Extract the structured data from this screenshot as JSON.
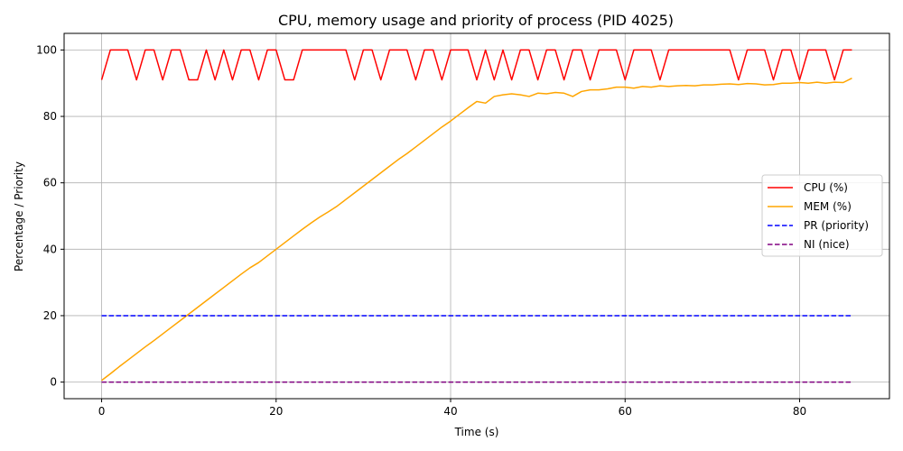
{
  "chart_data": {
    "type": "line",
    "title": "CPU, memory usage and priority of process (PID 4025)",
    "xlabel": "Time (s)",
    "ylabel": "Percentage / Priority",
    "xlim": [
      -4.3,
      90.3
    ],
    "ylim": [
      -5,
      105
    ],
    "xticks": [
      0,
      20,
      40,
      60,
      80
    ],
    "yticks": [
      0,
      20,
      40,
      60,
      80,
      100
    ],
    "grid": true,
    "legend_position": "center-right",
    "x": [
      0,
      1,
      2,
      3,
      4,
      5,
      6,
      7,
      8,
      9,
      10,
      11,
      12,
      13,
      14,
      15,
      16,
      17,
      18,
      19,
      20,
      21,
      22,
      23,
      24,
      25,
      26,
      27,
      28,
      29,
      30,
      31,
      32,
      33,
      34,
      35,
      36,
      37,
      38,
      39,
      40,
      41,
      42,
      43,
      44,
      45,
      46,
      47,
      48,
      49,
      50,
      51,
      52,
      53,
      54,
      55,
      56,
      57,
      58,
      59,
      60,
      61,
      62,
      63,
      64,
      65,
      66,
      67,
      68,
      69,
      70,
      71,
      72,
      73,
      74,
      75,
      76,
      77,
      78,
      79,
      80,
      81,
      82,
      83,
      84,
      85,
      86
    ],
    "series": [
      {
        "name": "CPU (%)",
        "color": "#ff0000",
        "dash": "solid",
        "values": [
          91,
          100,
          100,
          100,
          91,
          100,
          100,
          91,
          100,
          100,
          91,
          91,
          100,
          91,
          100,
          91,
          100,
          100,
          91,
          100,
          100,
          91,
          91,
          100,
          100,
          100,
          100,
          100,
          100,
          91,
          100,
          100,
          91,
          100,
          100,
          100,
          91,
          100,
          100,
          91,
          100,
          100,
          100,
          91,
          100,
          91,
          100,
          91,
          100,
          100,
          91,
          100,
          100,
          91,
          100,
          100,
          91,
          100,
          100,
          100,
          91,
          100,
          100,
          100,
          91,
          100,
          100,
          100,
          100,
          100,
          100,
          100,
          100,
          91,
          100,
          100,
          100,
          91,
          100,
          100,
          91,
          100,
          100,
          100,
          91,
          100,
          100
        ]
      },
      {
        "name": "MEM (%)",
        "color": "#ffa500",
        "dash": "solid",
        "values": [
          0.5,
          2.5,
          4.6,
          6.6,
          8.6,
          10.6,
          12.5,
          14.5,
          16.5,
          18.5,
          20.5,
          22.5,
          24.5,
          26.5,
          28.5,
          30.5,
          32.5,
          34.4,
          36.0,
          38.0,
          40.0,
          42.0,
          44.0,
          46.0,
          47.9,
          49.7,
          51.3,
          53.0,
          55.0,
          57.0,
          59.0,
          61.0,
          63.0,
          65.0,
          67.0,
          68.8,
          70.8,
          72.8,
          74.8,
          76.8,
          78.6,
          80.6,
          82.6,
          84.5,
          84.0,
          86.0,
          86.5,
          86.8,
          86.5,
          86.0,
          87.0,
          86.8,
          87.2,
          87.0,
          86.0,
          87.5,
          88.0,
          88.0,
          88.3,
          88.8,
          88.8,
          88.5,
          89.0,
          88.8,
          89.2,
          89.0,
          89.2,
          89.3,
          89.2,
          89.5,
          89.5,
          89.7,
          89.8,
          89.6,
          89.9,
          89.8,
          89.5,
          89.6,
          90.0,
          90.0,
          90.2,
          90.0,
          90.3,
          90.0,
          90.3,
          90.2,
          91.5
        ]
      },
      {
        "name": "PR (priority)",
        "color": "#0000ff",
        "dash": "dashed",
        "values": [
          20,
          20,
          20,
          20,
          20,
          20,
          20,
          20,
          20,
          20,
          20,
          20,
          20,
          20,
          20,
          20,
          20,
          20,
          20,
          20,
          20,
          20,
          20,
          20,
          20,
          20,
          20,
          20,
          20,
          20,
          20,
          20,
          20,
          20,
          20,
          20,
          20,
          20,
          20,
          20,
          20,
          20,
          20,
          20,
          20,
          20,
          20,
          20,
          20,
          20,
          20,
          20,
          20,
          20,
          20,
          20,
          20,
          20,
          20,
          20,
          20,
          20,
          20,
          20,
          20,
          20,
          20,
          20,
          20,
          20,
          20,
          20,
          20,
          20,
          20,
          20,
          20,
          20,
          20,
          20,
          20,
          20,
          20,
          20,
          20,
          20,
          20
        ]
      },
      {
        "name": "NI (nice)",
        "color": "#800080",
        "dash": "dashed",
        "values": [
          0,
          0,
          0,
          0,
          0,
          0,
          0,
          0,
          0,
          0,
          0,
          0,
          0,
          0,
          0,
          0,
          0,
          0,
          0,
          0,
          0,
          0,
          0,
          0,
          0,
          0,
          0,
          0,
          0,
          0,
          0,
          0,
          0,
          0,
          0,
          0,
          0,
          0,
          0,
          0,
          0,
          0,
          0,
          0,
          0,
          0,
          0,
          0,
          0,
          0,
          0,
          0,
          0,
          0,
          0,
          0,
          0,
          0,
          0,
          0,
          0,
          0,
          0,
          0,
          0,
          0,
          0,
          0,
          0,
          0,
          0,
          0,
          0,
          0,
          0,
          0,
          0,
          0,
          0,
          0,
          0,
          0,
          0,
          0,
          0,
          0,
          0
        ]
      }
    ]
  }
}
